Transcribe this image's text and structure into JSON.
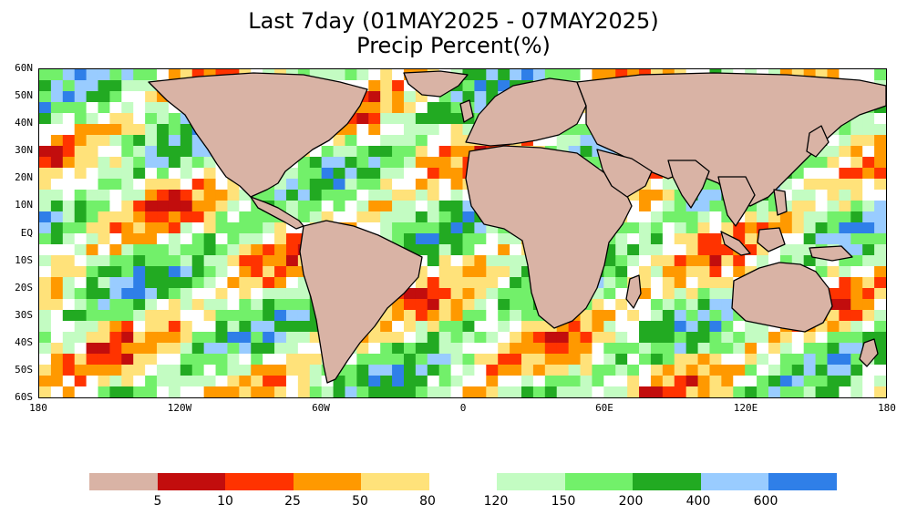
{
  "title": {
    "line1": "Last 7day (01MAY2025 - 07MAY2025)",
    "line2": "Precip Percent(%)"
  },
  "map": {
    "projection": "lat-lon",
    "lon_range": [
      -180,
      180
    ],
    "lat_range": [
      -60,
      60
    ],
    "lat_labels": [
      "60N",
      "50N",
      "40N",
      "30N",
      "20N",
      "10N",
      "EQ",
      "10S",
      "20S",
      "30S",
      "40S",
      "50S",
      "60S"
    ],
    "lon_labels": [
      "180",
      "120W",
      "60W",
      "0",
      "60E",
      "120E",
      "180"
    ],
    "land_color": "#d9b3a5",
    "coast_color": "#000000"
  },
  "legend": {
    "bins": [
      {
        "color": "#d9b3a5"
      },
      {
        "color": "#c20d0d"
      },
      {
        "color": "#ff3300"
      },
      {
        "color": "#ff9900"
      },
      {
        "color": "#ffe27a"
      },
      {
        "color": "#ffffff"
      },
      {
        "color": "#c3fcc2"
      },
      {
        "color": "#72f06a"
      },
      {
        "color": "#22aa22"
      },
      {
        "color": "#99ccff"
      },
      {
        "color": "#2f7fe8"
      }
    ],
    "labels": [
      "5",
      "10",
      "25",
      "50",
      "80",
      "120",
      "150",
      "200",
      "400",
      "600"
    ]
  }
}
